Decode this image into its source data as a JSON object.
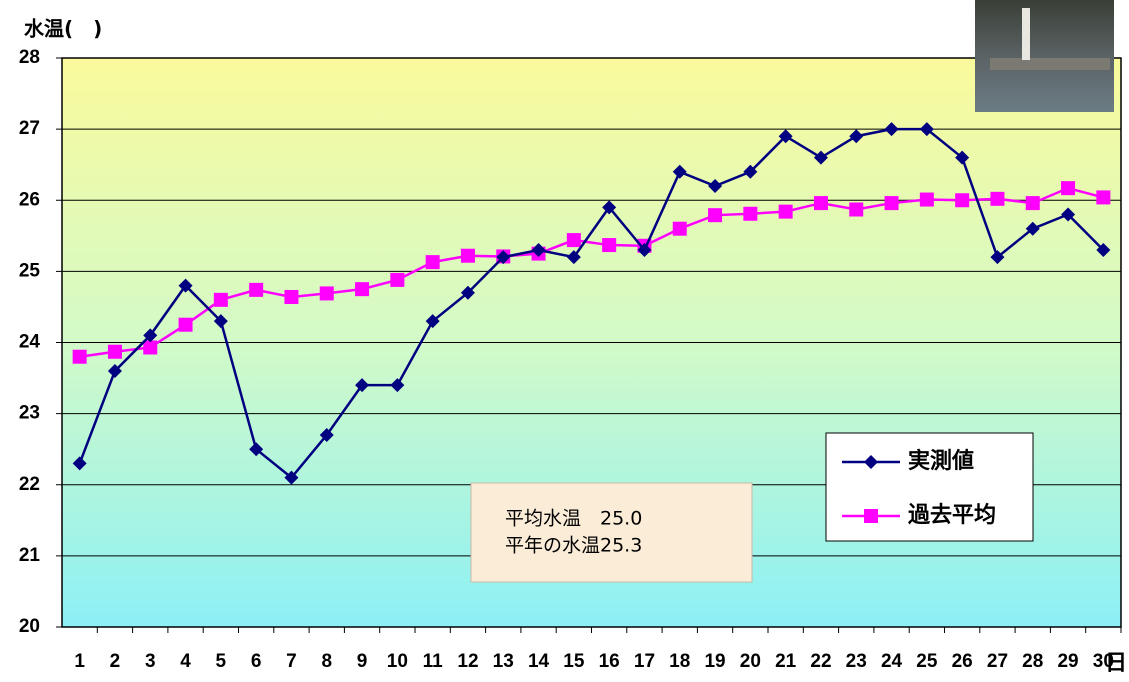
{
  "chart_data": {
    "type": "line",
    "y_label": "水温(　)",
    "x_label": "日",
    "categories": [
      "1",
      "2",
      "3",
      "4",
      "5",
      "6",
      "7",
      "8",
      "9",
      "10",
      "11",
      "12",
      "13",
      "14",
      "15",
      "16",
      "17",
      "18",
      "19",
      "20",
      "21",
      "22",
      "23",
      "24",
      "25",
      "26",
      "27",
      "28",
      "29",
      "30"
    ],
    "series": [
      {
        "name": "実測値",
        "color": "#000080",
        "marker": "diamond",
        "values": [
          22.3,
          23.6,
          24.1,
          24.8,
          24.3,
          22.5,
          22.1,
          22.7,
          23.4,
          23.4,
          24.3,
          24.7,
          25.2,
          25.3,
          25.2,
          25.9,
          25.3,
          26.4,
          26.2,
          26.4,
          26.9,
          26.6,
          26.9,
          27.0,
          27.0,
          26.6,
          25.2,
          25.6,
          25.8,
          25.3
        ]
      },
      {
        "name": "過去平均",
        "color": "#ff00ff",
        "marker": "square",
        "values": [
          23.8,
          23.87,
          23.93,
          24.25,
          24.6,
          24.74,
          24.64,
          24.69,
          24.75,
          24.88,
          25.13,
          25.22,
          25.21,
          25.25,
          25.44,
          25.37,
          25.36,
          25.6,
          25.79,
          25.81,
          25.84,
          25.96,
          25.87,
          25.96,
          26.01,
          26.0,
          26.02,
          25.96,
          26.17,
          26.04
        ]
      }
    ],
    "ylim": [
      20,
      28
    ],
    "yticks": [
      20,
      21,
      22,
      23,
      24,
      25,
      26,
      27,
      28
    ],
    "grid": true,
    "annotation": [
      "平均水温　25.0",
      "平年の水温25.3"
    ]
  }
}
